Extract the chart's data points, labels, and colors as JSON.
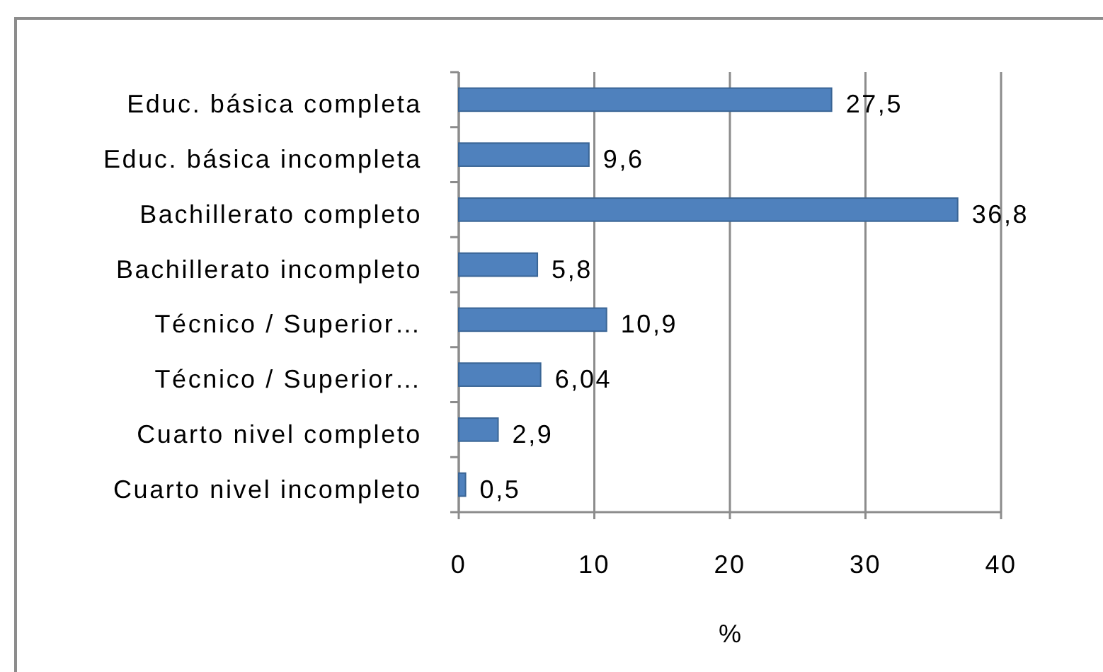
{
  "chart_data": {
    "type": "bar",
    "orientation": "horizontal",
    "categories": [
      "Educ. básica completa",
      "Educ. básica incompleta",
      "Bachillerato completo",
      "Bachillerato incompleto",
      "Técnico / Superior…",
      "Técnico / Superior…",
      "Cuarto nivel completo",
      "Cuarto nivel incompleto"
    ],
    "values": [
      27.5,
      9.6,
      36.8,
      5.8,
      10.9,
      6.04,
      2.9,
      0.5
    ],
    "value_labels": [
      "27,5",
      "9,6",
      "36,8",
      "5,8",
      "10,9",
      "6,04",
      "2,9",
      "0,5"
    ],
    "color": "#4f81bd",
    "xlim": [
      0,
      40
    ],
    "xticks": [
      0,
      10,
      20,
      30,
      40
    ],
    "xlabel": "%",
    "grid": "x"
  }
}
